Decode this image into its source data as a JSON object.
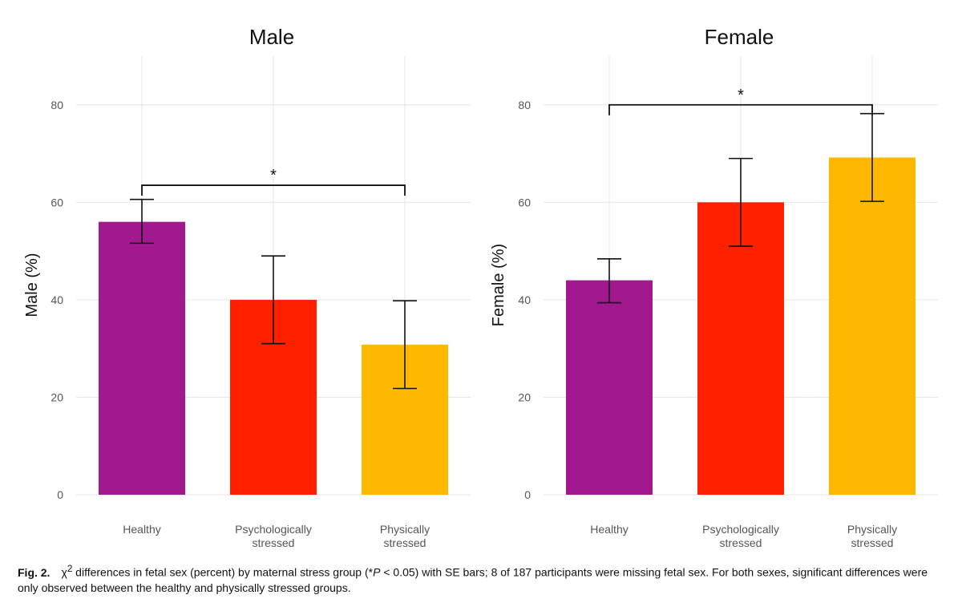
{
  "chart_data": [
    {
      "type": "bar",
      "title": "Male",
      "ylabel": "Male (%)",
      "xlabel": "",
      "ylim": [
        0,
        90
      ],
      "yticks": [
        0,
        20,
        40,
        60,
        80
      ],
      "grid": true,
      "categories": [
        "Healthy",
        "Psychologically stressed",
        "Physically stressed"
      ],
      "category_lines": [
        [
          "Healthy"
        ],
        [
          "Psychologically",
          "stressed"
        ],
        [
          "Physically",
          "stressed"
        ]
      ],
      "values": [
        56,
        40,
        30.8
      ],
      "error_low": [
        51.6,
        31,
        21.8
      ],
      "error_high": [
        60.6,
        49,
        39.8
      ],
      "colors": [
        "#a2198f",
        "#ff2000",
        "#ffb800"
      ],
      "significance": {
        "from": 0,
        "to": 2,
        "y": 63.5,
        "label": "*"
      }
    },
    {
      "type": "bar",
      "title": "Female",
      "ylabel": "Female (%)",
      "xlabel": "",
      "ylim": [
        0,
        90
      ],
      "yticks": [
        0,
        20,
        40,
        60,
        80
      ],
      "grid": true,
      "categories": [
        "Healthy",
        "Psychologically stressed",
        "Physically stressed"
      ],
      "category_lines": [
        [
          "Healthy"
        ],
        [
          "Psychologically",
          "stressed"
        ],
        [
          "Physically",
          "stressed"
        ]
      ],
      "values": [
        44,
        60,
        69.2
      ],
      "error_low": [
        39.4,
        51,
        60.2
      ],
      "error_high": [
        48.4,
        69,
        78.2
      ],
      "colors": [
        "#a2198f",
        "#ff2000",
        "#ffb800"
      ],
      "significance": {
        "from": 0,
        "to": 2,
        "y": 80,
        "label": "*"
      }
    }
  ],
  "caption": {
    "label": "Fig. 2.",
    "chi": "χ",
    "sup": "2",
    "text_a": " differences in fetal sex (percent) by maternal stress group (*",
    "p": "P",
    "text_b": " < 0.05) with SE bars; 8 of 187 participants were missing fetal sex. For both sexes, significant differences were only observed between the healthy and physically stressed groups."
  }
}
